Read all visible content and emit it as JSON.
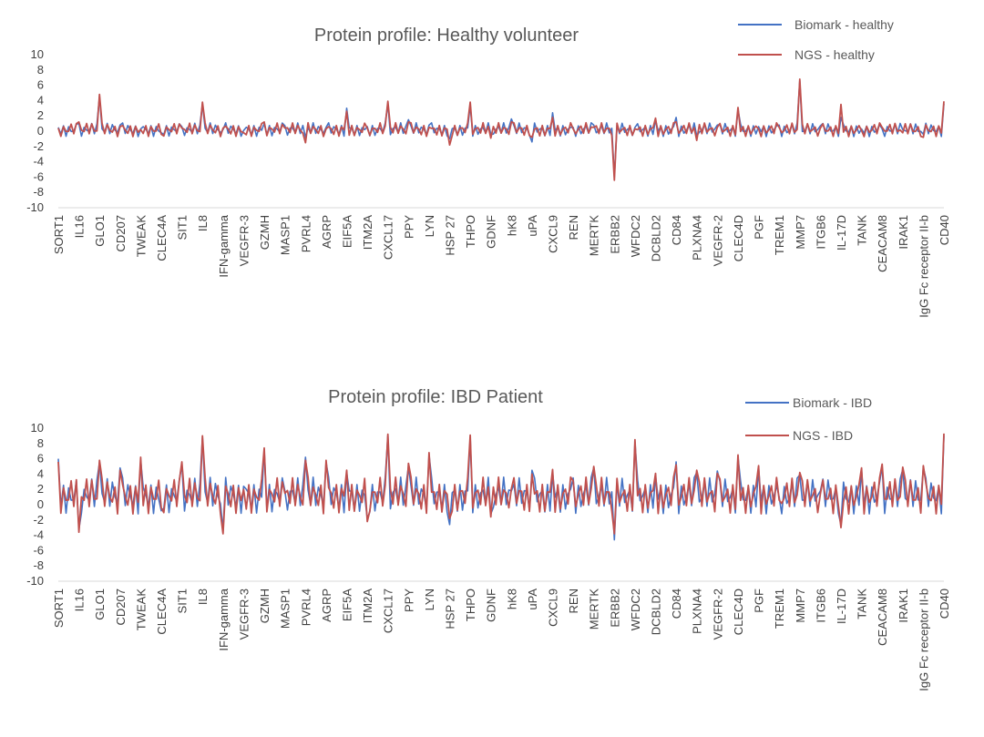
{
  "colors": {
    "biomark": "#4472C4",
    "ngs": "#C0504D"
  },
  "chart_data": [
    {
      "type": "line",
      "title": "Protein profile: Healthy volunteer",
      "xlabel": "",
      "ylabel": "",
      "ylim": [
        -10,
        10
      ],
      "yticks": [
        10,
        8,
        6,
        4,
        2,
        0,
        -2,
        -4,
        -6,
        -8,
        -10
      ],
      "legend_position": "top-right",
      "categories": [
        "SORT1",
        "IL16",
        "GLO1",
        "CD207",
        "TWEAK",
        "CLEC4A",
        "SIT1",
        "IL8",
        "IFN-gamma",
        "VEGFR-3",
        "GZMH",
        "MASP1",
        "PVRL4",
        "AGRP",
        "EIF5A",
        "ITM2A",
        "CXCL17",
        "PPY",
        "LYN",
        "HSP 27",
        "THPO",
        "GDNF",
        "hK8",
        "uPA",
        "CXCL9",
        "REN",
        "MERTK",
        "ERBB2",
        "WFDC2",
        "DCBLD2",
        "CD84",
        "PLXNA4",
        "VEGFR-2",
        "CLEC4D",
        "PGF",
        "TREM1",
        "MMP7",
        "ITGB6",
        "IL-17D",
        "TANK",
        "CEACAM8",
        "IRAK1",
        "IgG Fc receptor II-b",
        "CD40"
      ],
      "series": [
        {
          "name": "Biomark - healthy",
          "values": [
            0.5,
            1.0,
            4.5,
            0.8,
            0.3,
            -0.2,
            0.6,
            3.5,
            0.2,
            0.1,
            1.0,
            0.7,
            -0.8,
            0.5,
            3.0,
            0.6,
            3.6,
            1.5,
            0.8,
            -1.0,
            3.4,
            -0.4,
            1.6,
            -1.4,
            2.4,
            0.5,
            0.8,
            -6.0,
            0.5,
            1.5,
            1.8,
            -0.6,
            0.8,
            2.8,
            0.6,
            0.8,
            6.6,
            0.7,
            1.8,
            0.3,
            0.3,
            0.2,
            -0.4,
            3.6
          ]
        },
        {
          "name": "NGS - healthy",
          "values": [
            0.4,
            1.2,
            4.8,
            0.6,
            0.2,
            -0.4,
            0.4,
            3.8,
            0.4,
            -0.2,
            1.2,
            0.4,
            -1.5,
            0.3,
            2.6,
            0.4,
            3.9,
            1.2,
            0.5,
            -1.8,
            3.8,
            -0.9,
            1.2,
            -0.8,
            1.8,
            0.3,
            0.5,
            -6.4,
            0.3,
            1.7,
            1.2,
            -1.2,
            0.5,
            3.1,
            0.3,
            0.5,
            6.8,
            0.4,
            3.5,
            0.1,
            0.5,
            -0.2,
            -0.8,
            3.9
          ]
        }
      ]
    },
    {
      "type": "line",
      "title": "Protein profile: IBD Patient",
      "xlabel": "",
      "ylabel": "",
      "ylim": [
        -10,
        10
      ],
      "yticks": [
        10,
        8,
        6,
        4,
        2,
        0,
        -2,
        -4,
        -6,
        -8,
        -10
      ],
      "legend_position": "top-right",
      "categories": [
        "SORT1",
        "IL16",
        "GLO1",
        "CD207",
        "TWEAK",
        "CLEC4A",
        "SIT1",
        "IL8",
        "IFN-gamma",
        "VEGFR-3",
        "GZMH",
        "MASP1",
        "PVRL4",
        "AGRP",
        "EIF5A",
        "ITM2A",
        "CXCL17",
        "PPY",
        "LYN",
        "HSP 27",
        "THPO",
        "GDNF",
        "hK8",
        "uPA",
        "CXCL9",
        "REN",
        "MERTK",
        "ERBB2",
        "WFDC2",
        "DCBLD2",
        "CD84",
        "PLXNA4",
        "VEGFR-2",
        "CLEC4D",
        "PGF",
        "TREM1",
        "MMP7",
        "ITGB6",
        "IL-17D",
        "TANK",
        "CEACAM8",
        "IRAK1",
        "IgG Fc receptor II-b",
        "CD40"
      ],
      "series": [
        {
          "name": "Biomark - IBD",
          "values": [
            6.0,
            -3.2,
            5.5,
            4.8,
            5.8,
            -0.8,
            5.2,
            8.8,
            -3.4,
            2.4,
            7.2,
            1.8,
            6.2,
            5.5,
            4.2,
            -1.8,
            9.0,
            5.0,
            6.5,
            -2.6,
            8.8,
            -1.2,
            1.8,
            4.5,
            4.2,
            3.5,
            4.8,
            -4.6,
            8.2,
            3.8,
            5.6,
            4.2,
            4.4,
            6.2,
            4.8,
            1.0,
            3.9,
            1.8,
            -2.6,
            4.5,
            5.0,
            4.6,
            4.8,
            9.0
          ]
        },
        {
          "name": "NGS - IBD",
          "values": [
            5.6,
            -3.6,
            5.8,
            4.5,
            6.2,
            -0.4,
            5.6,
            9.0,
            -3.8,
            2.0,
            7.4,
            1.5,
            5.8,
            5.8,
            4.5,
            -2.2,
            9.2,
            5.4,
            6.8,
            -1.8,
            9.1,
            -1.6,
            2.1,
            4.0,
            4.6,
            3.1,
            5.0,
            -3.8,
            8.5,
            4.1,
            5.2,
            4.5,
            4.1,
            6.5,
            5.1,
            0.6,
            4.2,
            1.4,
            -3.0,
            4.8,
            5.3,
            4.9,
            5.1,
            9.3
          ]
        }
      ]
    }
  ]
}
